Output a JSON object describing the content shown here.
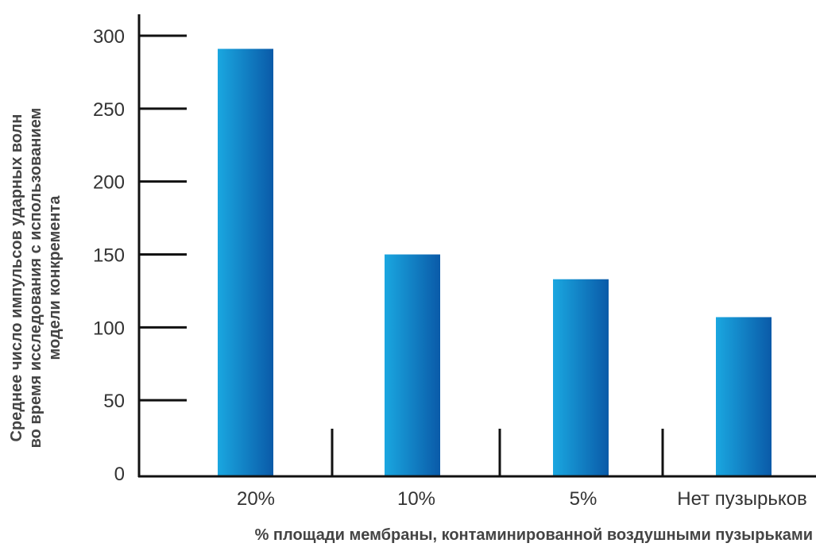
{
  "chart_data": {
    "type": "bar",
    "categories": [
      "20%",
      "10%",
      "5%",
      "Нет пузырьков"
    ],
    "values": [
      291,
      150,
      133,
      107
    ],
    "ylim": [
      0,
      300
    ],
    "yticks": [
      0,
      50,
      100,
      150,
      200,
      250,
      300
    ],
    "xlabel": "% площади мембраны, контаминированной воздушными пузырьками",
    "ylabel_lines": [
      "Среднее число импульсов ударных волн",
      "во время исследования с использованием",
      "модели конкремента"
    ],
    "grid": false,
    "legend": "none",
    "colors": {
      "bar_light": "#1aa7e0",
      "bar_dark": "#0a5aa8",
      "axis": "#111111",
      "text": "#333333"
    }
  }
}
